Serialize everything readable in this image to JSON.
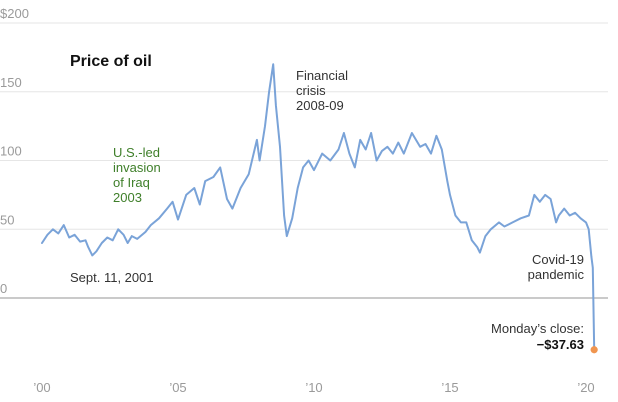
{
  "chart_data": {
    "type": "line",
    "title": "Price of oil",
    "xlabel": "",
    "ylabel": "",
    "xlim": [
      2000,
      2020.5
    ],
    "ylim": [
      -45,
      200
    ],
    "y_ticks": [
      {
        "value": 200,
        "label": "$200"
      },
      {
        "value": 150,
        "label": "150"
      },
      {
        "value": 100,
        "label": "100"
      },
      {
        "value": 50,
        "label": "50"
      },
      {
        "value": 0,
        "label": "0"
      }
    ],
    "x_ticks": [
      {
        "value": 2000,
        "label": "’00"
      },
      {
        "value": 2005,
        "label": "’05"
      },
      {
        "value": 2010,
        "label": "’10"
      },
      {
        "value": 2015,
        "label": "’15"
      },
      {
        "value": 2020,
        "label": "’20"
      }
    ],
    "series": [
      {
        "name": "Oil price",
        "x": [
          2000.0,
          2000.2,
          2000.4,
          2000.6,
          2000.8,
          2001.0,
          2001.2,
          2001.4,
          2001.6,
          2001.7,
          2001.85,
          2002.0,
          2002.2,
          2002.4,
          2002.6,
          2002.8,
          2003.0,
          2003.15,
          2003.3,
          2003.5,
          2003.8,
          2004.0,
          2004.3,
          2004.6,
          2004.8,
          2005.0,
          2005.3,
          2005.6,
          2005.8,
          2006.0,
          2006.3,
          2006.55,
          2006.8,
          2007.0,
          2007.3,
          2007.6,
          2007.9,
          2008.0,
          2008.2,
          2008.35,
          2008.5,
          2008.6,
          2008.75,
          2008.9,
          2009.0,
          2009.2,
          2009.4,
          2009.6,
          2009.8,
          2010.0,
          2010.3,
          2010.6,
          2010.9,
          2011.1,
          2011.3,
          2011.5,
          2011.7,
          2011.9,
          2012.1,
          2012.3,
          2012.5,
          2012.7,
          2012.9,
          2013.1,
          2013.3,
          2013.6,
          2013.9,
          2014.1,
          2014.3,
          2014.5,
          2014.7,
          2014.9,
          2015.0,
          2015.2,
          2015.4,
          2015.6,
          2015.8,
          2016.0,
          2016.1,
          2016.3,
          2016.5,
          2016.8,
          2017.0,
          2017.3,
          2017.6,
          2017.9,
          2018.1,
          2018.3,
          2018.5,
          2018.7,
          2018.9,
          2019.0,
          2019.2,
          2019.4,
          2019.6,
          2019.8,
          2020.0,
          2020.1,
          2020.2,
          2020.25,
          2020.3
        ],
        "values": [
          40,
          46,
          50,
          47,
          53,
          44,
          46,
          41,
          42,
          37,
          31,
          34,
          40,
          44,
          42,
          50,
          46,
          40,
          45,
          43,
          48,
          53,
          58,
          65,
          70,
          57,
          75,
          80,
          68,
          85,
          88,
          95,
          72,
          65,
          80,
          90,
          115,
          100,
          125,
          150,
          170,
          140,
          110,
          60,
          45,
          58,
          80,
          95,
          100,
          93,
          105,
          100,
          108,
          120,
          105,
          95,
          115,
          108,
          120,
          100,
          107,
          110,
          105,
          113,
          105,
          120,
          110,
          112,
          105,
          118,
          108,
          85,
          75,
          60,
          55,
          55,
          42,
          37,
          33,
          45,
          50,
          55,
          52,
          55,
          58,
          60,
          75,
          70,
          75,
          72,
          55,
          60,
          65,
          60,
          62,
          58,
          55,
          50,
          30,
          22,
          -37.63
        ]
      }
    ],
    "annotations": [
      {
        "lines": [
          "Sept. 11, 2001"
        ]
      },
      {
        "lines": [
          "U.S.-led",
          "invasion",
          "of Iraq",
          "2003"
        ]
      },
      {
        "lines": [
          "Financial",
          "crisis",
          "2008-09"
        ]
      },
      {
        "lines": [
          "Covid-19",
          "pandemic"
        ]
      },
      {
        "lines": [
          "Monday’s close:",
          "−$37.63"
        ]
      }
    ],
    "colors": {
      "line": "#7aa3d8",
      "endpoint": "#f0954f",
      "grid": "#e6e6e6",
      "zero_line": "#aaaaaa",
      "highlight_text": "#3f7f2a"
    }
  }
}
